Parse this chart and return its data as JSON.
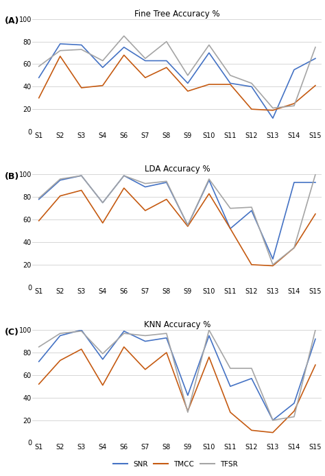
{
  "x_labels": [
    "S1",
    "S2",
    "S3",
    "S4",
    "S6",
    "S7",
    "S8",
    "S9",
    "S10",
    "S11",
    "S12",
    "S13",
    "S14",
    "S15"
  ],
  "panel_A": {
    "title": "Fine Tree Accuracy %",
    "label": "(A)",
    "SNR": [
      48,
      78,
      77,
      57,
      75,
      63,
      63,
      43,
      70,
      43,
      40,
      12,
      55,
      65
    ],
    "TMCC": [
      30,
      67,
      39,
      41,
      68,
      48,
      57,
      36,
      42,
      42,
      20,
      19,
      25,
      41
    ],
    "TFSR": [
      58,
      72,
      73,
      63,
      85,
      65,
      80,
      50,
      77,
      50,
      43,
      21,
      23,
      75
    ]
  },
  "panel_B": {
    "title": "LDA Accuracy %",
    "label": "(B)",
    "SNR": [
      78,
      95,
      99,
      75,
      99,
      89,
      93,
      55,
      95,
      52,
      68,
      25,
      93,
      93
    ],
    "TMCC": [
      59,
      81,
      86,
      57,
      88,
      68,
      78,
      54,
      83,
      52,
      20,
      19,
      35,
      65
    ],
    "TFSR": [
      79,
      96,
      99,
      75,
      99,
      92,
      94,
      55,
      96,
      70,
      71,
      20,
      35,
      100
    ]
  },
  "panel_C": {
    "title": "KNN Accuracy %",
    "label": "(C)",
    "SNR": [
      72,
      95,
      100,
      74,
      99,
      90,
      93,
      42,
      95,
      50,
      57,
      20,
      35,
      92
    ],
    "TMCC": [
      52,
      73,
      83,
      51,
      85,
      65,
      80,
      28,
      76,
      27,
      11,
      9,
      28,
      69
    ],
    "TFSR": [
      85,
      97,
      99,
      79,
      97,
      95,
      97,
      27,
      100,
      66,
      66,
      20,
      23,
      100
    ]
  },
  "colors": {
    "SNR": "#4472C4",
    "TMCC": "#C55A11",
    "TFSR": "#A5A5A5"
  },
  "ylim": [
    0,
    100
  ],
  "yticks": [
    0,
    20,
    40,
    60,
    80,
    100
  ]
}
